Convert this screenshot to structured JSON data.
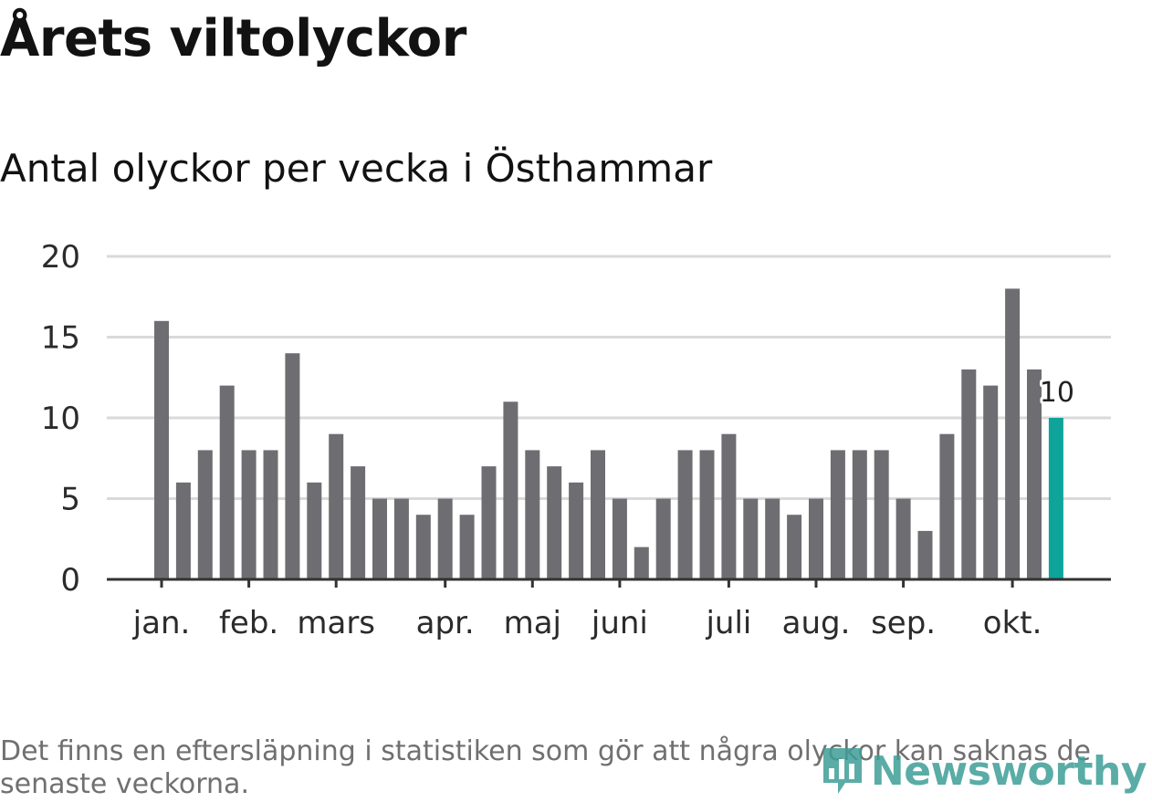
{
  "header": {
    "title": "Årets viltolyckor",
    "subtitle": "Antal olyckor per vecka i Östhammar"
  },
  "chart_data": {
    "type": "bar",
    "title": "Årets viltolyckor",
    "subtitle": "Antal olyckor per vecka i Östhammar",
    "xlabel": "",
    "ylabel": "",
    "ylim": [
      0,
      20
    ],
    "y_ticks": [
      0,
      5,
      10,
      15,
      20
    ],
    "grid": true,
    "values": [
      16,
      6,
      8,
      12,
      8,
      8,
      14,
      6,
      9,
      7,
      5,
      5,
      4,
      5,
      4,
      7,
      11,
      8,
      7,
      6,
      8,
      5,
      2,
      5,
      8,
      8,
      9,
      5,
      5,
      4,
      5,
      8,
      8,
      8,
      5,
      3,
      9,
      13,
      12,
      18,
      13,
      10
    ],
    "month_labels": [
      {
        "label": "jan.",
        "bar_index": 0
      },
      {
        "label": "feb.",
        "bar_index": 4
      },
      {
        "label": "mars",
        "bar_index": 8
      },
      {
        "label": "apr.",
        "bar_index": 13
      },
      {
        "label": "maj",
        "bar_index": 17
      },
      {
        "label": "juni",
        "bar_index": 21
      },
      {
        "label": "juli",
        "bar_index": 26
      },
      {
        "label": "aug.",
        "bar_index": 30
      },
      {
        "label": "sep.",
        "bar_index": 34
      },
      {
        "label": "okt.",
        "bar_index": 39
      }
    ],
    "highlight": {
      "bar_index": 41,
      "label": "10"
    },
    "colors": {
      "bar": "#6e6d72",
      "highlight": "#0fa49a",
      "grid": "#d9d9d9",
      "axis": "#333333"
    }
  },
  "footnote": "Det finns en eftersläpning i statistiken som gör att några olyckor kan saknas de senaste veckorna.",
  "brand": {
    "name": "Newsworthy",
    "icon": "bar-chart-speech-icon",
    "color": "#3e9e97"
  }
}
